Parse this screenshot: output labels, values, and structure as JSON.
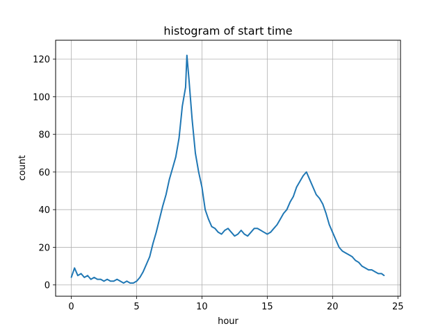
{
  "chart_data": {
    "type": "line",
    "title": "histogram of start time",
    "xlabel": "hour",
    "ylabel": "count",
    "xlim": [
      -1.2,
      25.2
    ],
    "ylim": [
      -6,
      130
    ],
    "grid": true,
    "x_ticks": [
      0,
      5,
      10,
      15,
      20,
      25
    ],
    "y_ticks": [
      0,
      20,
      40,
      60,
      80,
      100,
      120
    ],
    "x_tick_labels": [
      "0",
      "5",
      "10",
      "15",
      "20",
      "25"
    ],
    "y_tick_labels": [
      "0",
      "20",
      "40",
      "60",
      "80",
      "100",
      "120"
    ],
    "series": [
      {
        "color": "#1f77b4",
        "x": [
          0,
          0.25,
          0.5,
          0.75,
          1,
          1.25,
          1.5,
          1.75,
          2,
          2.25,
          2.5,
          2.75,
          3,
          3.25,
          3.5,
          3.75,
          4,
          4.25,
          4.5,
          4.75,
          5,
          5.25,
          5.5,
          5.75,
          6,
          6.25,
          6.5,
          6.75,
          7,
          7.25,
          7.5,
          7.75,
          8,
          8.25,
          8.5,
          8.75,
          8.85,
          9,
          9.25,
          9.5,
          9.75,
          10,
          10.25,
          10.5,
          10.75,
          11,
          11.25,
          11.5,
          11.75,
          12,
          12.25,
          12.5,
          12.75,
          13,
          13.25,
          13.5,
          13.75,
          14,
          14.25,
          14.5,
          14.75,
          15,
          15.25,
          15.5,
          15.75,
          16,
          16.25,
          16.5,
          16.75,
          17,
          17.25,
          17.5,
          17.75,
          18,
          18.25,
          18.5,
          18.75,
          19,
          19.25,
          19.5,
          19.75,
          20,
          20.25,
          20.5,
          20.75,
          21,
          21.25,
          21.5,
          21.75,
          22,
          22.25,
          22.5,
          22.75,
          23,
          23.25,
          23.5,
          23.75,
          23.95
        ],
        "y": [
          4,
          9,
          5,
          6,
          4,
          5,
          3,
          4,
          3,
          3,
          2,
          3,
          2,
          2,
          3,
          2,
          1,
          2,
          1,
          1,
          2,
          4,
          7,
          11,
          15,
          22,
          28,
          35,
          42,
          48,
          56,
          62,
          68,
          78,
          95,
          105,
          122,
          110,
          88,
          70,
          60,
          52,
          40,
          35,
          31,
          30,
          28,
          27,
          29,
          30,
          28,
          26,
          27,
          29,
          27,
          26,
          28,
          30,
          30,
          29,
          28,
          27,
          28,
          30,
          32,
          35,
          38,
          40,
          44,
          47,
          52,
          55,
          58,
          60,
          56,
          52,
          48,
          46,
          43,
          38,
          32,
          28,
          24,
          20,
          18,
          17,
          16,
          15,
          13,
          12,
          10,
          9,
          8,
          8,
          7,
          6,
          6,
          5
        ]
      }
    ]
  }
}
